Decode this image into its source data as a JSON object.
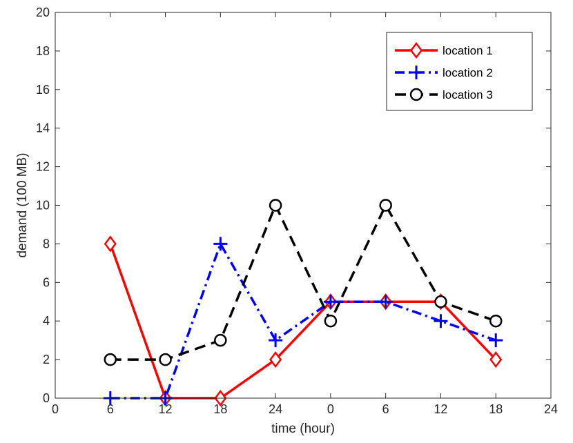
{
  "chart_data": {
    "type": "line",
    "title": "",
    "xlabel": "time (hour)",
    "ylabel": "demand (100 MB)",
    "xlim": [
      0,
      9
    ],
    "ylim": [
      0,
      20
    ],
    "x_ticks": [
      0,
      1,
      2,
      3,
      4,
      5,
      6,
      7,
      8,
      9
    ],
    "x_tick_labels": [
      "0",
      "6",
      "12",
      "18",
      "24",
      "0",
      "6",
      "12",
      "18",
      "24"
    ],
    "y_ticks": [
      0,
      2,
      4,
      6,
      8,
      10,
      12,
      14,
      16,
      18,
      20
    ],
    "y_tick_labels": [
      "0",
      "2",
      "4",
      "6",
      "8",
      "10",
      "12",
      "14",
      "16",
      "18",
      "20"
    ],
    "x": [
      1,
      2,
      3,
      4,
      5,
      6,
      7,
      8
    ],
    "series": [
      {
        "name": "location 1",
        "values": [
          8,
          0,
          0,
          2,
          5,
          5,
          5,
          2
        ],
        "color": "#ff0000",
        "dash": "solid",
        "marker": "diamond"
      },
      {
        "name": "location 2",
        "values": [
          0,
          0,
          8,
          3,
          5,
          5,
          4,
          3
        ],
        "color": "#0000ff",
        "dash": "dashdot",
        "marker": "plus"
      },
      {
        "name": "location 3",
        "values": [
          2,
          2,
          3,
          10,
          4,
          10,
          5,
          4
        ],
        "color": "#000000",
        "dash": "dashed",
        "marker": "circle"
      }
    ],
    "legend_position": "top-right",
    "grid": false
  }
}
